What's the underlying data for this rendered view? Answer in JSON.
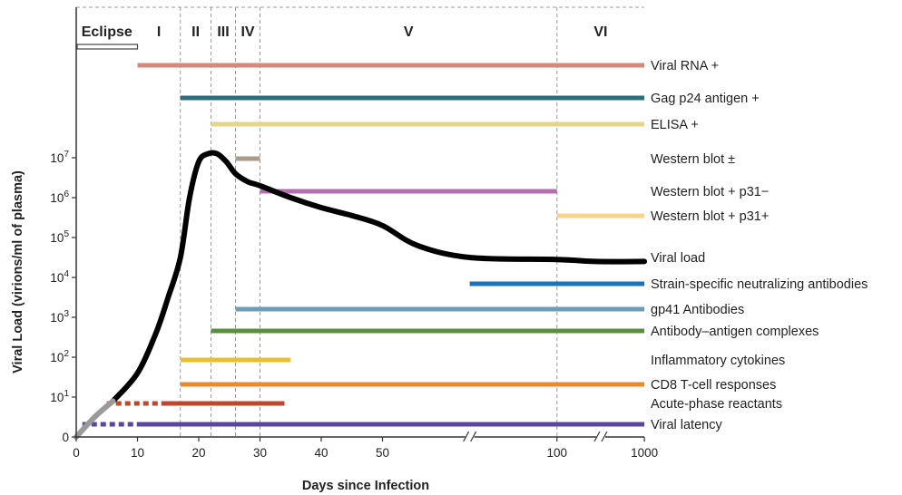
{
  "chart_data": {
    "type": "line",
    "xlabel": "Days since Infection",
    "ylabel": "Viral Load (virions/ml of plasma)",
    "x_ticks": [
      "0",
      "10",
      "20",
      "30",
      "40",
      "50",
      "100",
      "1000"
    ],
    "y_ticks": [
      {
        "base": "0",
        "exp": ""
      },
      {
        "base": "10",
        "exp": "1"
      },
      {
        "base": "10",
        "exp": "2"
      },
      {
        "base": "10",
        "exp": "3"
      },
      {
        "base": "10",
        "exp": "4"
      },
      {
        "base": "10",
        "exp": "5"
      },
      {
        "base": "10",
        "exp": "6"
      },
      {
        "base": "10",
        "exp": "7"
      }
    ],
    "stages": [
      {
        "label": "Eclipse",
        "start": 0,
        "end": 10
      },
      {
        "label": "I",
        "start": 10,
        "end": 17
      },
      {
        "label": "II",
        "start": 17,
        "end": 22
      },
      {
        "label": "III",
        "start": 22,
        "end": 26
      },
      {
        "label": "IV",
        "start": 26,
        "end": 30
      },
      {
        "label": "V",
        "start": 30,
        "end": 100
      },
      {
        "label": "VI",
        "start": 100,
        "end": 1000
      }
    ],
    "series": [
      {
        "name": "Viral load",
        "points": [
          [
            0,
            0
          ],
          [
            3,
            0.5
          ],
          [
            6,
            0.9
          ],
          [
            10,
            1.6
          ],
          [
            13,
            2.6
          ],
          [
            15,
            3.5
          ],
          [
            17,
            4.5
          ],
          [
            18.5,
            6.0
          ],
          [
            20,
            6.9
          ],
          [
            21.5,
            7.1
          ],
          [
            23,
            7.1
          ],
          [
            24.5,
            6.9
          ],
          [
            26,
            6.6
          ],
          [
            28,
            6.4
          ],
          [
            30,
            6.3
          ],
          [
            35,
            6.0
          ],
          [
            40,
            5.75
          ],
          [
            45,
            5.55
          ],
          [
            50,
            5.3
          ],
          [
            60,
            4.8
          ],
          [
            75,
            4.5
          ],
          [
            100,
            4.45
          ],
          [
            500,
            4.4
          ],
          [
            1000,
            4.4
          ]
        ]
      }
    ],
    "markers": [
      {
        "name": "Viral RNA +",
        "start": 10,
        "end": 1000,
        "color": "#d48a7a"
      },
      {
        "name": "Gag p24 antigen +",
        "start": 17,
        "end": 1000,
        "color": "#2b6e80"
      },
      {
        "name": "ELISA +",
        "start": 22,
        "end": 1000,
        "color": "#e3d68a"
      },
      {
        "name": "Western blot ±",
        "start": 26,
        "end": 30,
        "color": "#a79d8a"
      },
      {
        "name": "Western blot + p31−",
        "start": 30,
        "end": 100,
        "color": "#b56fb0"
      },
      {
        "name": "Western blot + p31+",
        "start": 100,
        "end": 1000,
        "color": "#f6d48e"
      },
      {
        "name": "Viral load",
        "series_ref": true
      },
      {
        "name": "Strain-specific neutralizing antibodies",
        "start": 75,
        "end": 1000,
        "color": "#1a73bb"
      },
      {
        "name": "gp41 Antibodies",
        "start": 26,
        "end": 1000,
        "color": "#6c9fb7"
      },
      {
        "name": "Antibody–antigen complexes",
        "start": 22,
        "end": 1000,
        "color": "#5b8f3e"
      },
      {
        "name": "Inflammatory cytokines",
        "start": 17,
        "end": 35,
        "color": "#e8c02e"
      },
      {
        "name": "CD8 T-cell responses",
        "start": 17,
        "end": 1000,
        "color": "#e98a2f"
      },
      {
        "name": "Acute-phase reactants",
        "start": 5,
        "end": 34,
        "dashed_until": 14,
        "color": "#c2462a"
      },
      {
        "name": "Viral latency",
        "start": 1,
        "end": 1000,
        "dashed_until": 10,
        "color": "#5a45a0"
      }
    ]
  }
}
